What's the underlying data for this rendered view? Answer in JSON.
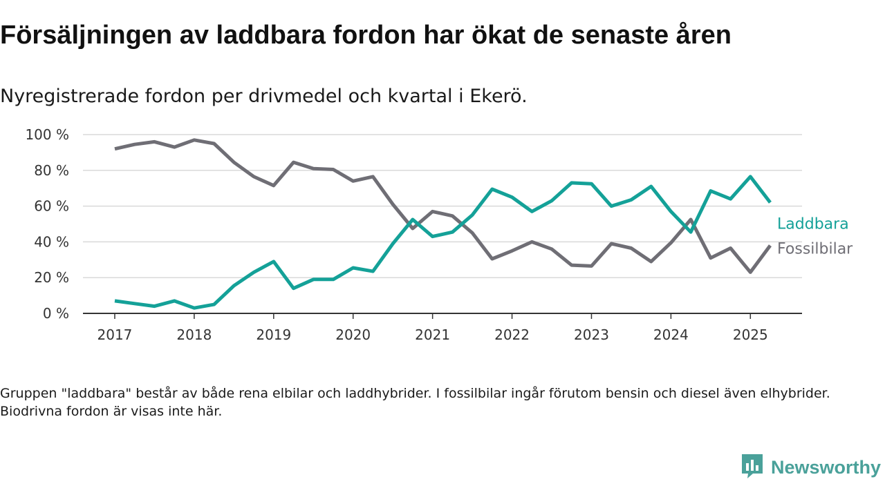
{
  "header": {
    "title": "Försäljningen av laddbara fordon har ökat de senaste åren",
    "subtitle": "Nyregistrerade fordon per drivmedel och kvartal i Ekerö."
  },
  "footer": {
    "note": "Gruppen \"laddbara\" består av både rena elbilar och laddhybrider. I fossilbilar ingår förutom bensin och diesel även elhybrider. Biodrivna fordon är visas inte här.",
    "brand": "Newsworthy",
    "brand_icon": "newsworthy-logo-icon"
  },
  "colors": {
    "laddbara": "#14a198",
    "fossil": "#6f6e75",
    "grid": "#d9d9d9",
    "axis": "#333333",
    "brand": "#4aa19a"
  },
  "chart_data": {
    "type": "line",
    "x_ticks": [
      "2017",
      "2018",
      "2019",
      "2020",
      "2021",
      "2022",
      "2023",
      "2024",
      "2025"
    ],
    "y_ticks": [
      "0 %",
      "20 %",
      "40 %",
      "60 %",
      "80 %",
      "100 %"
    ],
    "ylim": [
      0,
      100
    ],
    "xlim": [
      2016.6,
      2025.65
    ],
    "grid": true,
    "legend": "right-end labels",
    "x": [
      2017.0,
      2017.25,
      2017.5,
      2017.75,
      2018.0,
      2018.25,
      2018.5,
      2018.75,
      2019.0,
      2019.25,
      2019.5,
      2019.75,
      2020.0,
      2020.25,
      2020.5,
      2020.75,
      2021.0,
      2021.25,
      2021.5,
      2021.75,
      2022.0,
      2022.25,
      2022.5,
      2022.75,
      2023.0,
      2023.25,
      2023.5,
      2023.75,
      2024.0,
      2024.25,
      2024.5,
      2024.75,
      2025.0,
      2025.25
    ],
    "series": [
      {
        "name": "Laddbara",
        "color": "#14a198",
        "values": [
          7,
          5.5,
          4,
          7,
          3,
          5,
          15.5,
          23,
          29,
          14,
          19,
          19,
          25.5,
          23.5,
          39,
          52.5,
          43,
          45.5,
          55,
          69.5,
          65,
          57,
          63,
          73,
          72.5,
          60,
          63.5,
          71,
          57,
          45.5,
          68.5,
          64,
          76.5,
          62
        ]
      },
      {
        "name": "Fossilbilar",
        "color": "#6f6e75",
        "values": [
          92,
          94.5,
          96,
          93,
          97,
          95,
          84.5,
          76.5,
          71.5,
          84.5,
          81,
          80.5,
          74,
          76.5,
          61,
          47.5,
          57,
          54.5,
          45,
          30.5,
          35,
          40,
          36,
          27,
          26.5,
          39,
          36.5,
          29,
          39.5,
          52.5,
          31,
          36.5,
          23,
          38
        ]
      }
    ]
  }
}
